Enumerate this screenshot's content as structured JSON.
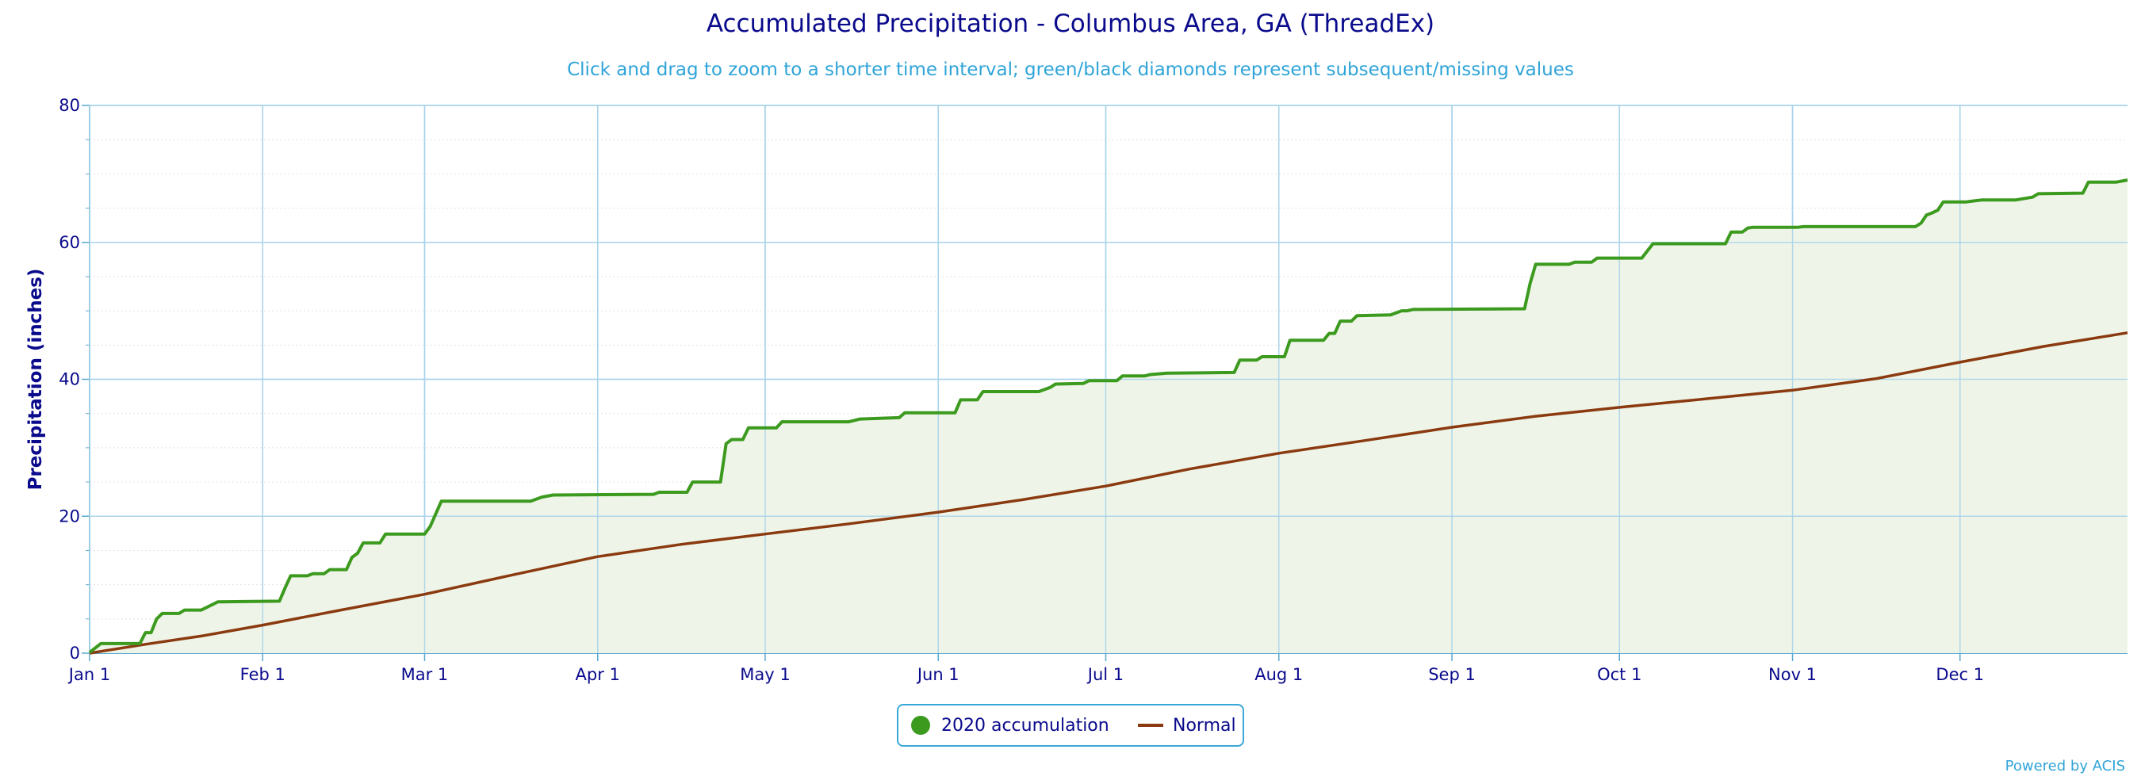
{
  "chart_data": {
    "type": "area",
    "title": "Accumulated Precipitation - Columbus Area, GA (ThreadEx)",
    "subtitle": "Click and drag to zoom to a shorter time interval; green/black diamonds represent subsequent/missing values",
    "xlabel": "",
    "ylabel": "Precipitation (inches)",
    "ylim": [
      0,
      80
    ],
    "yticks": [
      0,
      20,
      40,
      60,
      80
    ],
    "xlim": [
      1,
      366
    ],
    "x_ticks": [
      {
        "day": 1,
        "label": "Jan 1"
      },
      {
        "day": 32,
        "label": "Feb 1"
      },
      {
        "day": 61,
        "label": "Mar 1"
      },
      {
        "day": 92,
        "label": "Apr 1"
      },
      {
        "day": 122,
        "label": "May 1"
      },
      {
        "day": 153,
        "label": "Jun 1"
      },
      {
        "day": 183,
        "label": "Jul 1"
      },
      {
        "day": 214,
        "label": "Aug 1"
      },
      {
        "day": 245,
        "label": "Sep 1"
      },
      {
        "day": 275,
        "label": "Oct 1"
      },
      {
        "day": 306,
        "label": "Nov 1"
      },
      {
        "day": 336,
        "label": "Dec 1"
      }
    ],
    "grid": true,
    "legend_position": "bottom-center",
    "series": [
      {
        "name": "2020 accumulation",
        "color": "#3c9a1e",
        "fill": "#eef5e8",
        "points": [
          [
            1,
            0.1
          ],
          [
            3,
            1.4
          ],
          [
            10,
            1.4
          ],
          [
            11,
            3.0
          ],
          [
            12,
            3.0
          ],
          [
            13,
            5.0
          ],
          [
            14,
            5.8
          ],
          [
            17,
            5.8
          ],
          [
            18,
            6.3
          ],
          [
            21,
            6.3
          ],
          [
            24,
            7.5
          ],
          [
            35,
            7.6
          ],
          [
            36,
            9.5
          ],
          [
            37,
            11.3
          ],
          [
            40,
            11.3
          ],
          [
            41,
            11.6
          ],
          [
            43,
            11.6
          ],
          [
            44,
            12.2
          ],
          [
            47,
            12.2
          ],
          [
            48,
            14.0
          ],
          [
            49,
            14.6
          ],
          [
            50,
            16.1
          ],
          [
            53,
            16.1
          ],
          [
            54,
            17.4
          ],
          [
            61,
            17.4
          ],
          [
            62,
            18.5
          ],
          [
            64,
            22.2
          ],
          [
            80,
            22.2
          ],
          [
            82,
            22.8
          ],
          [
            84,
            23.1
          ],
          [
            102,
            23.2
          ],
          [
            103,
            23.5
          ],
          [
            108,
            23.5
          ],
          [
            109,
            25.0
          ],
          [
            114,
            25.0
          ],
          [
            115,
            30.6
          ],
          [
            116,
            31.2
          ],
          [
            118,
            31.2
          ],
          [
            119,
            32.9
          ],
          [
            124,
            32.9
          ],
          [
            125,
            33.8
          ],
          [
            137,
            33.8
          ],
          [
            139,
            34.2
          ],
          [
            146,
            34.4
          ],
          [
            147,
            35.1
          ],
          [
            156,
            35.1
          ],
          [
            157,
            37.0
          ],
          [
            160,
            37.0
          ],
          [
            161,
            38.2
          ],
          [
            171,
            38.2
          ],
          [
            173,
            38.8
          ],
          [
            174,
            39.3
          ],
          [
            179,
            39.4
          ],
          [
            180,
            39.8
          ],
          [
            185,
            39.8
          ],
          [
            186,
            40.5
          ],
          [
            190,
            40.5
          ],
          [
            191,
            40.7
          ],
          [
            194,
            40.9
          ],
          [
            206,
            41.0
          ],
          [
            207,
            42.8
          ],
          [
            210,
            42.8
          ],
          [
            211,
            43.3
          ],
          [
            215,
            43.3
          ],
          [
            216,
            45.7
          ],
          [
            222,
            45.7
          ],
          [
            223,
            46.7
          ],
          [
            224,
            46.7
          ],
          [
            225,
            48.5
          ],
          [
            227,
            48.5
          ],
          [
            228,
            49.3
          ],
          [
            234,
            49.4
          ],
          [
            236,
            50.0
          ],
          [
            237,
            50.0
          ],
          [
            238,
            50.2
          ],
          [
            258,
            50.3
          ],
          [
            259,
            54.0
          ],
          [
            260,
            56.8
          ],
          [
            266,
            56.8
          ],
          [
            267,
            57.1
          ],
          [
            270,
            57.1
          ],
          [
            271,
            57.7
          ],
          [
            279,
            57.7
          ],
          [
            281,
            59.8
          ],
          [
            294,
            59.8
          ],
          [
            295,
            61.5
          ],
          [
            297,
            61.5
          ],
          [
            298,
            62.1
          ],
          [
            299,
            62.2
          ],
          [
            307,
            62.2
          ],
          [
            308,
            62.3
          ],
          [
            328,
            62.3
          ],
          [
            329,
            62.8
          ],
          [
            330,
            64.0
          ],
          [
            331,
            64.3
          ],
          [
            332,
            64.7
          ],
          [
            333,
            65.9
          ],
          [
            337,
            65.9
          ],
          [
            338,
            66.0
          ],
          [
            340,
            66.2
          ],
          [
            346,
            66.2
          ],
          [
            349,
            66.6
          ],
          [
            350,
            67.1
          ],
          [
            358,
            67.2
          ],
          [
            359,
            68.8
          ],
          [
            364,
            68.8
          ],
          [
            366,
            69.1
          ]
        ]
      },
      {
        "name": "Normal",
        "color": "#8b3a10",
        "points": [
          [
            1,
            0.0
          ],
          [
            11,
            1.3
          ],
          [
            21,
            2.5
          ],
          [
            32,
            4.1
          ],
          [
            46,
            6.3
          ],
          [
            61,
            8.6
          ],
          [
            76,
            11.3
          ],
          [
            92,
            14.1
          ],
          [
            107,
            15.9
          ],
          [
            122,
            17.4
          ],
          [
            137,
            18.9
          ],
          [
            153,
            20.6
          ],
          [
            168,
            22.4
          ],
          [
            183,
            24.4
          ],
          [
            198,
            26.9
          ],
          [
            214,
            29.2
          ],
          [
            229,
            31.0
          ],
          [
            245,
            33.0
          ],
          [
            260,
            34.6
          ],
          [
            275,
            35.9
          ],
          [
            290,
            37.1
          ],
          [
            306,
            38.4
          ],
          [
            321,
            40.1
          ],
          [
            336,
            42.5
          ],
          [
            351,
            44.8
          ],
          [
            366,
            46.8
          ]
        ]
      }
    ]
  },
  "legend": {
    "items": [
      {
        "label": "2020 accumulation",
        "color": "#3c9a1e"
      },
      {
        "label": "Normal",
        "color": "#8b3a10"
      }
    ]
  },
  "credit": "Powered by ACIS"
}
